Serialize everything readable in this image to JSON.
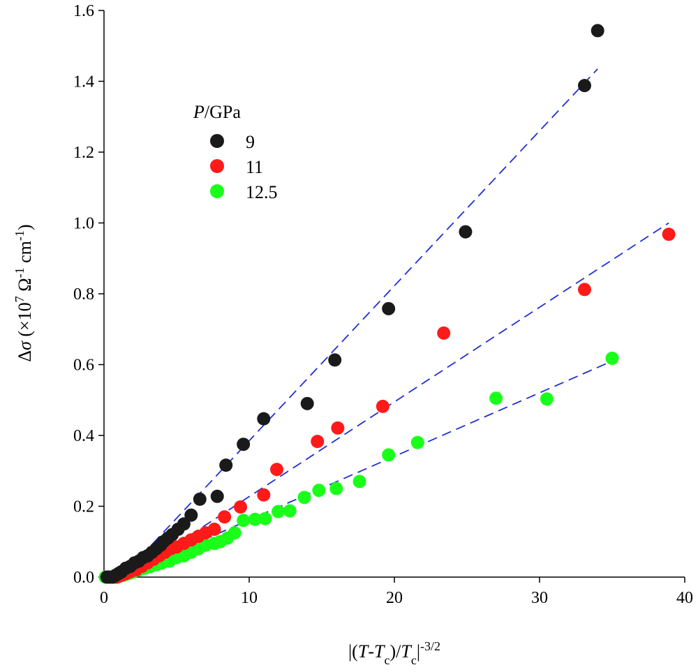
{
  "chart_data": {
    "type": "scatter",
    "xlabel": "|(T-Tc)/Tc|^-3/2",
    "ylabel": "Δσ (×10^7 Ω^-1 cm^-1)",
    "xlim": [
      0,
      40
    ],
    "ylim": [
      0,
      1.6
    ],
    "x_ticks": [
      "0",
      "10",
      "20",
      "30",
      "40"
    ],
    "y_ticks": [
      "0.0",
      "0.2",
      "0.4",
      "0.6",
      "0.8",
      "1.0",
      "1.2",
      "1.4",
      "1.6"
    ],
    "grid": false,
    "legend": {
      "title_italic": "P",
      "title_rest": "/GPa",
      "placement": "upper-left"
    },
    "series": [
      {
        "name": "9",
        "color": "#1a1a1a",
        "points": [
          [
            0.2,
            0
          ],
          [
            0.4,
            0
          ],
          [
            0.6,
            0
          ],
          [
            0.8,
            0.005
          ],
          [
            1.0,
            0.01
          ],
          [
            1.2,
            0.015
          ],
          [
            1.5,
            0.025
          ],
          [
            1.8,
            0.03
          ],
          [
            2.1,
            0.04
          ],
          [
            2.4,
            0.045
          ],
          [
            2.7,
            0.055
          ],
          [
            3.0,
            0.06
          ],
          [
            3.3,
            0.07
          ],
          [
            3.6,
            0.08
          ],
          [
            3.9,
            0.09
          ],
          [
            4.1,
            0.1
          ],
          [
            4.4,
            0.11
          ],
          [
            4.7,
            0.12
          ],
          [
            5.1,
            0.135
          ],
          [
            5.5,
            0.15
          ],
          [
            6.0,
            0.175
          ],
          [
            6.6,
            0.22
          ],
          [
            7.8,
            0.228
          ],
          [
            8.4,
            0.316
          ],
          [
            9.6,
            0.375
          ],
          [
            11.0,
            0.447
          ],
          [
            14.0,
            0.49
          ],
          [
            15.9,
            0.613
          ],
          [
            19.6,
            0.758
          ],
          [
            24.9,
            0.975
          ],
          [
            33.1,
            1.388
          ],
          [
            34.0,
            1.543
          ]
        ],
        "fit": [
          [
            1.2,
            0
          ],
          [
            34.0,
            1.435
          ]
        ]
      },
      {
        "name": "11",
        "color": "#ff1a1a",
        "points": [
          [
            0.3,
            0
          ],
          [
            0.6,
            0
          ],
          [
            0.9,
            0
          ],
          [
            1.2,
            0.005
          ],
          [
            1.5,
            0.01
          ],
          [
            1.8,
            0.015
          ],
          [
            2.2,
            0.02
          ],
          [
            2.6,
            0.03
          ],
          [
            3.0,
            0.04
          ],
          [
            3.4,
            0.05
          ],
          [
            3.8,
            0.06
          ],
          [
            4.2,
            0.07
          ],
          [
            4.6,
            0.08
          ],
          [
            5.0,
            0.085
          ],
          [
            5.5,
            0.095
          ],
          [
            6.0,
            0.105
          ],
          [
            6.5,
            0.115
          ],
          [
            7.0,
            0.125
          ],
          [
            7.6,
            0.135
          ],
          [
            8.3,
            0.17
          ],
          [
            9.4,
            0.198
          ],
          [
            11.0,
            0.232
          ],
          [
            11.9,
            0.304
          ],
          [
            14.7,
            0.383
          ],
          [
            16.1,
            0.421
          ],
          [
            19.2,
            0.482
          ],
          [
            23.4,
            0.689
          ],
          [
            33.1,
            0.812
          ],
          [
            38.9,
            0.968
          ]
        ],
        "fit": [
          [
            1.5,
            0
          ],
          [
            38.9,
            1.0
          ]
        ]
      },
      {
        "name": "12.5",
        "color": "#1aff1a",
        "points": [
          [
            0.1,
            0
          ],
          [
            0.3,
            0
          ],
          [
            0.5,
            0
          ],
          [
            0.7,
            0
          ],
          [
            0.9,
            0
          ],
          [
            1.1,
            0.003
          ],
          [
            1.4,
            0.006
          ],
          [
            1.7,
            0.01
          ],
          [
            2.0,
            0.014
          ],
          [
            2.4,
            0.02
          ],
          [
            2.8,
            0.025
          ],
          [
            3.2,
            0.03
          ],
          [
            3.6,
            0.035
          ],
          [
            4.0,
            0.04
          ],
          [
            4.5,
            0.045
          ],
          [
            5.0,
            0.055
          ],
          [
            5.5,
            0.06
          ],
          [
            6.0,
            0.07
          ],
          [
            6.5,
            0.08
          ],
          [
            7.0,
            0.09
          ],
          [
            7.6,
            0.095
          ],
          [
            8.0,
            0.1
          ],
          [
            8.5,
            0.11
          ],
          [
            9.0,
            0.125
          ],
          [
            9.6,
            0.16
          ],
          [
            10.4,
            0.163
          ],
          [
            11.1,
            0.165
          ],
          [
            12.0,
            0.185
          ],
          [
            12.8,
            0.187
          ],
          [
            13.8,
            0.225
          ],
          [
            14.8,
            0.245
          ],
          [
            16.0,
            0.25
          ],
          [
            17.6,
            0.27
          ],
          [
            19.6,
            0.345
          ],
          [
            21.6,
            0.38
          ],
          [
            27.0,
            0.505
          ],
          [
            30.5,
            0.503
          ],
          [
            35.0,
            0.618
          ]
        ],
        "fit": [
          [
            1.0,
            0
          ],
          [
            35.0,
            0.61
          ]
        ]
      }
    ]
  }
}
